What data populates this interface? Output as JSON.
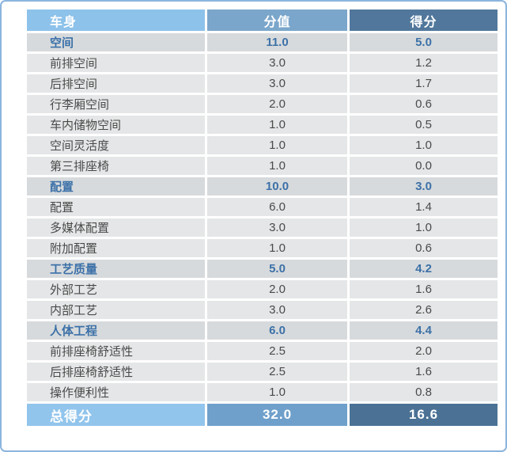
{
  "chart_data": {
    "type": "table",
    "columns": [
      "车身",
      "分值",
      "得分"
    ],
    "rows": [
      {
        "type": "section",
        "label": "空间",
        "value": "11.0",
        "score": "5.0"
      },
      {
        "type": "detail",
        "label": "前排空间",
        "value": "3.0",
        "score": "1.2"
      },
      {
        "type": "detail",
        "label": "后排空间",
        "value": "3.0",
        "score": "1.7"
      },
      {
        "type": "detail",
        "label": "行李厢空间",
        "value": "2.0",
        "score": "0.6"
      },
      {
        "type": "detail",
        "label": "车内储物空间",
        "value": "1.0",
        "score": "0.5"
      },
      {
        "type": "detail",
        "label": "空间灵活度",
        "value": "1.0",
        "score": "1.0"
      },
      {
        "type": "detail",
        "label": "第三排座椅",
        "value": "1.0",
        "score": "0.0"
      },
      {
        "type": "section",
        "label": "配置",
        "value": "10.0",
        "score": "3.0"
      },
      {
        "type": "detail",
        "label": "配置",
        "value": "6.0",
        "score": "1.4"
      },
      {
        "type": "detail",
        "label": "多媒体配置",
        "value": "3.0",
        "score": "1.0"
      },
      {
        "type": "detail",
        "label": "附加配置",
        "value": "1.0",
        "score": "0.6"
      },
      {
        "type": "section",
        "label": "工艺质量",
        "value": "5.0",
        "score": "4.2"
      },
      {
        "type": "detail",
        "label": "外部工艺",
        "value": "2.0",
        "score": "1.6"
      },
      {
        "type": "detail",
        "label": "内部工艺",
        "value": "3.0",
        "score": "2.6"
      },
      {
        "type": "section",
        "label": "人体工程",
        "value": "6.0",
        "score": "4.4"
      },
      {
        "type": "detail",
        "label": "前排座椅舒适性",
        "value": "2.5",
        "score": "2.0"
      },
      {
        "type": "detail",
        "label": "后排座椅舒适性",
        "value": "2.5",
        "score": "1.6"
      },
      {
        "type": "detail",
        "label": "操作便利性",
        "value": "1.0",
        "score": "0.8"
      }
    ],
    "total": {
      "label": "总得分",
      "value": "32.0",
      "score": "16.6"
    },
    "legend_position": "none",
    "grid": "white 3px gaps between cells"
  },
  "colors": {
    "outer_border": "#8BB5DE",
    "header_col1_bg": "#8DC2EA",
    "header_col2_bg": "#7BA6CB",
    "header_col3_bg": "#51789C",
    "total_col1_bg": "#92C5EC",
    "total_col2_bg": "#6FA0CB",
    "total_col3_bg": "#4B7295",
    "section_row_bg": "#D7DADC",
    "detail_row_bg": "#E4E6E7",
    "section_text": "#3C71A8",
    "detail_text": "#4A4A4A",
    "header_text": "#FFFFFF"
  }
}
